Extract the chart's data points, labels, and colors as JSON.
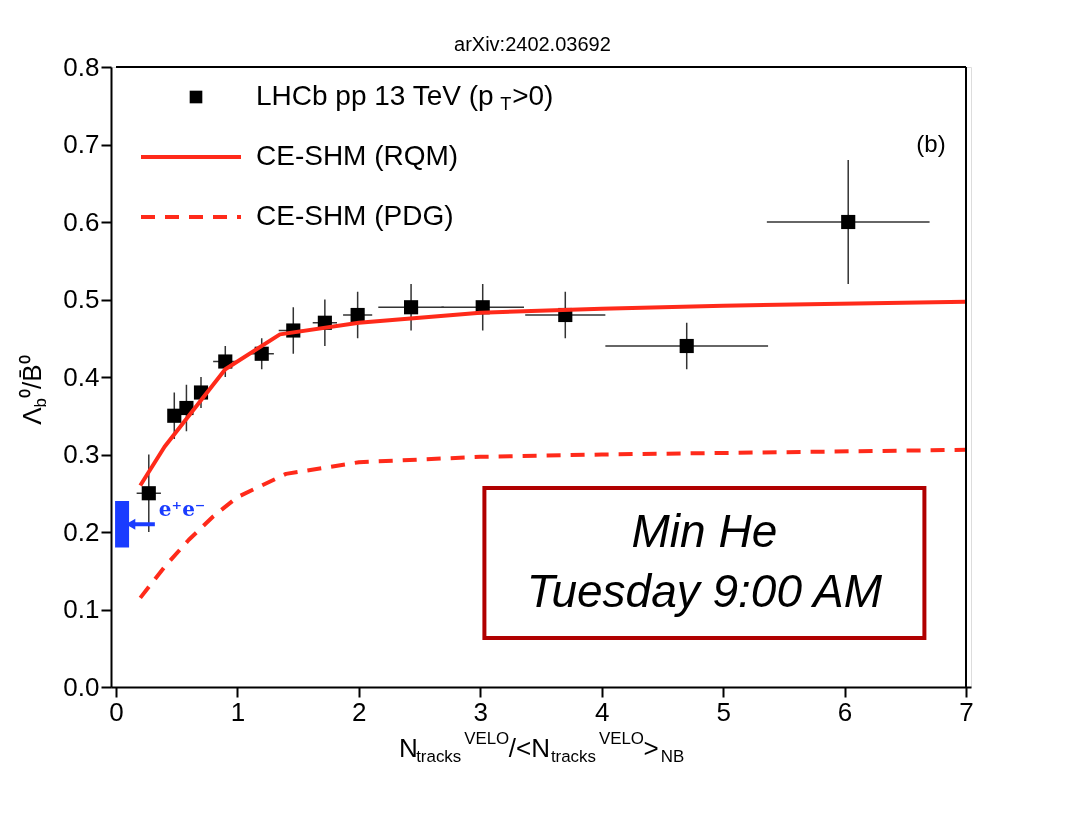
{
  "chart_data": {
    "type": "scatter",
    "xlabel": "N$_{tracks}$$^{VELO}$/<N$_{tracks}$$^{VELO}$>$_{NB}$",
    "ylabel": "Λ$_{b}$⁰/B̄⁰",
    "xlim": [
      0,
      7
    ],
    "ylim": [
      0,
      0.8
    ],
    "xticks": [
      0,
      1,
      2,
      3,
      4,
      5,
      6,
      7
    ],
    "yticks": [
      {
        "value": 0,
        "label": "0.0"
      },
      0.1,
      0.2,
      0.3,
      0.4,
      0.5,
      0.6,
      0.7,
      0.8
    ],
    "grid": false,
    "legend": "top left",
    "series": [
      {
        "name": "LHCb pp 13 TeV (p$_{T}$>0)",
        "marker": "square",
        "color": "#000000",
        "x": [
          0.27,
          0.48,
          0.58,
          0.7,
          0.9,
          1.2,
          1.46,
          1.72,
          1.99,
          2.43,
          3.02,
          3.7,
          4.7,
          6.03
        ],
        "values": [
          0.25,
          0.35,
          0.36,
          0.38,
          0.42,
          0.43,
          0.46,
          0.47,
          0.48,
          0.49,
          0.49,
          0.48,
          0.44,
          0.6
        ],
        "errors": [
          0.05,
          0.03,
          0.03,
          0.02,
          0.02,
          0.02,
          0.03,
          0.03,
          0.03,
          0.03,
          0.03,
          0.03,
          0.03,
          0.08
        ],
        "xerrors": [
          0.1,
          null,
          null,
          null,
          0.1,
          0.1,
          0.12,
          0.1,
          0.12,
          0.27,
          0.34,
          0.33,
          0.67,
          0.67
        ]
      },
      {
        "name": "CE-SHM (RQM)",
        "type": "line",
        "line_style": "solid",
        "color": "#ff2a1a",
        "x": [
          0.2,
          0.4,
          0.6,
          0.9,
          1.35,
          2.0,
          3.0,
          4.0,
          5.0,
          7.0
        ],
        "values": [
          0.26,
          0.31,
          0.35,
          0.41,
          0.455,
          0.47,
          0.483,
          0.488,
          0.492,
          0.497
        ]
      },
      {
        "name": "CE-SHM (PDG)",
        "type": "line",
        "line_style": "dashed",
        "color": "#ff2a1a",
        "x": [
          0.2,
          0.4,
          0.6,
          0.8,
          1.0,
          1.4,
          2.0,
          3.0,
          4.0,
          5.0,
          7.0
        ],
        "values": [
          0.115,
          0.155,
          0.19,
          0.22,
          0.245,
          0.275,
          0.29,
          0.297,
          0.3,
          0.302,
          0.306
        ]
      },
      {
        "type": "bar",
        "color": "#1a3cff",
        "x": [
          0.05
        ],
        "base": [
          0.18
        ],
        "values": [
          0.06
        ]
      }
    ],
    "annotations": [
      "arXiv:2402.03692",
      "(b)",
      "Min He\nTuesday 9:00 AM",
      {
        "text": "e⁺e⁻",
        "x": 0.12,
        "y": 0.21
      }
    ]
  }
}
